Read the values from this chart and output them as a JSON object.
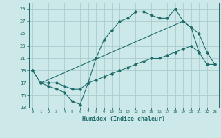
{
  "xlabel": "Humidex (Indice chaleur)",
  "bg_color": "#cde8e8",
  "grid_color": "#a8cccc",
  "line_color": "#1e6b6b",
  "xlim": [
    -0.5,
    23.5
  ],
  "ylim": [
    13,
    30
  ],
  "yticks": [
    13,
    15,
    17,
    19,
    21,
    23,
    25,
    27,
    29
  ],
  "xticks": [
    0,
    1,
    2,
    3,
    4,
    5,
    6,
    7,
    8,
    9,
    10,
    11,
    12,
    13,
    14,
    15,
    16,
    17,
    18,
    19,
    20,
    21,
    22,
    23
  ],
  "line1_x": [
    0,
    1,
    2,
    3,
    4,
    5,
    6,
    7,
    8,
    9,
    10,
    11,
    12,
    13,
    14,
    15,
    16,
    17,
    18,
    19,
    20,
    21
  ],
  "line1_y": [
    19,
    17,
    16.5,
    16,
    15.5,
    14,
    13.5,
    17,
    21,
    24,
    25.5,
    27,
    27.5,
    28.5,
    28.5,
    28,
    27.5,
    27.5,
    29,
    27,
    26,
    22
  ],
  "line2_x": [
    1,
    2,
    3,
    4,
    5,
    6,
    7,
    8,
    9,
    10,
    11,
    12,
    13,
    14,
    15,
    16,
    17,
    18,
    19,
    20,
    21,
    22,
    23
  ],
  "line2_y": [
    17,
    17,
    17,
    16.5,
    16,
    16,
    17,
    17.5,
    18,
    18.5,
    19,
    19.5,
    20,
    20.5,
    21,
    21,
    21.5,
    22,
    22.5,
    23,
    22,
    20,
    20
  ],
  "line3_x": [
    0,
    1,
    19,
    20,
    21,
    22,
    23
  ],
  "line3_y": [
    19,
    17,
    27,
    26,
    25,
    22,
    20
  ]
}
